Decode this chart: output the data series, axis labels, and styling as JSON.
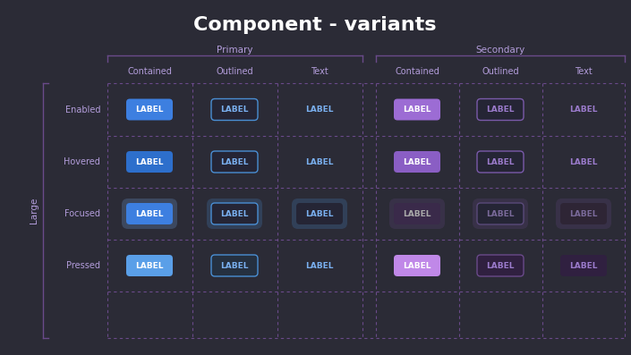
{
  "title": "Component - variants",
  "bg_color": "#2b2b36",
  "title_color": "#ffffff",
  "primary_label": "Primary",
  "secondary_label": "Secondary",
  "col_headers": [
    "Contained",
    "Outlined",
    "Text",
    "Contained",
    "Outlined",
    "Text"
  ],
  "row_headers": [
    "Enabled",
    "Hovered",
    "Focused",
    "Pressed"
  ],
  "size_label": "Large",
  "header_color": "#b39ddb",
  "grid_color": "#6a4a8a",
  "label_text": "LABEL",
  "button_configs": {
    "enabled": {
      "primary_contained": {
        "bg": "#3d7fe0",
        "border": null,
        "text": "#ffffff"
      },
      "primary_outlined": {
        "bg": "#252535",
        "border": "#4a8fd4",
        "text": "#7ab0f0"
      },
      "primary_text": {
        "bg": null,
        "border": null,
        "text": "#7ab0f0"
      },
      "secondary_contained": {
        "bg": "#9c6cd4",
        "border": null,
        "text": "#ffffff"
      },
      "secondary_outlined": {
        "bg": "#252535",
        "border": "#7a5aaa",
        "text": "#9b7bcc"
      },
      "secondary_text": {
        "bg": null,
        "border": null,
        "text": "#9b7bcc"
      }
    },
    "hovered": {
      "primary_contained": {
        "bg": "#2d6fcc",
        "border": null,
        "text": "#ffffff"
      },
      "primary_outlined": {
        "bg": "#252535",
        "border": "#4a8fd4",
        "text": "#7ab0f0"
      },
      "primary_text": {
        "bg": null,
        "border": null,
        "text": "#7ab0f0"
      },
      "secondary_contained": {
        "bg": "#8a5ec4",
        "border": null,
        "text": "#ffffff"
      },
      "secondary_outlined": {
        "bg": "#252535",
        "border": "#7a5aaa",
        "text": "#9b7bcc"
      },
      "secondary_text": {
        "bg": null,
        "border": null,
        "text": "#9b7bcc"
      }
    },
    "focused": {
      "primary_contained": {
        "bg": "#3d7fe0",
        "border": null,
        "text": "#ffffff",
        "focus_ring": "#7ab0f5"
      },
      "primary_outlined": {
        "bg": "#252535",
        "border": "#4a8fd4",
        "text": "#7ab0f0",
        "focus_ring": "#4a8fd4"
      },
      "primary_text": {
        "bg": "#252535",
        "border": null,
        "text": "#7ab0f0",
        "focus_ring": "#4a8fd4"
      },
      "secondary_contained": {
        "bg": "#3a2a4a",
        "border": null,
        "text": "#aaaaaa",
        "focus_ring": "#6a4a8a"
      },
      "secondary_outlined": {
        "bg": "#252535",
        "border": "#5a4a7a",
        "text": "#7a6a9a",
        "focus_ring": "#6a4a8a"
      },
      "secondary_text": {
        "bg": "#2e2535",
        "border": null,
        "text": "#7a6a9a",
        "focus_ring": "#6a4a8a"
      }
    },
    "pressed": {
      "primary_contained": {
        "bg": "#5a9fe8",
        "border": null,
        "text": "#ffffff"
      },
      "primary_outlined": {
        "bg": "#253040",
        "border": "#4a8fd4",
        "text": "#7ab0f0"
      },
      "primary_text": {
        "bg": null,
        "border": null,
        "text": "#7ab0f0"
      },
      "secondary_contained": {
        "bg": "#c088e8",
        "border": null,
        "text": "#ffffff"
      },
      "secondary_outlined": {
        "bg": "#302040",
        "border": "#6a4a8a",
        "text": "#9b7bcc"
      },
      "secondary_text": {
        "bg": "#302040",
        "border": null,
        "text": "#9b7bcc"
      }
    }
  }
}
